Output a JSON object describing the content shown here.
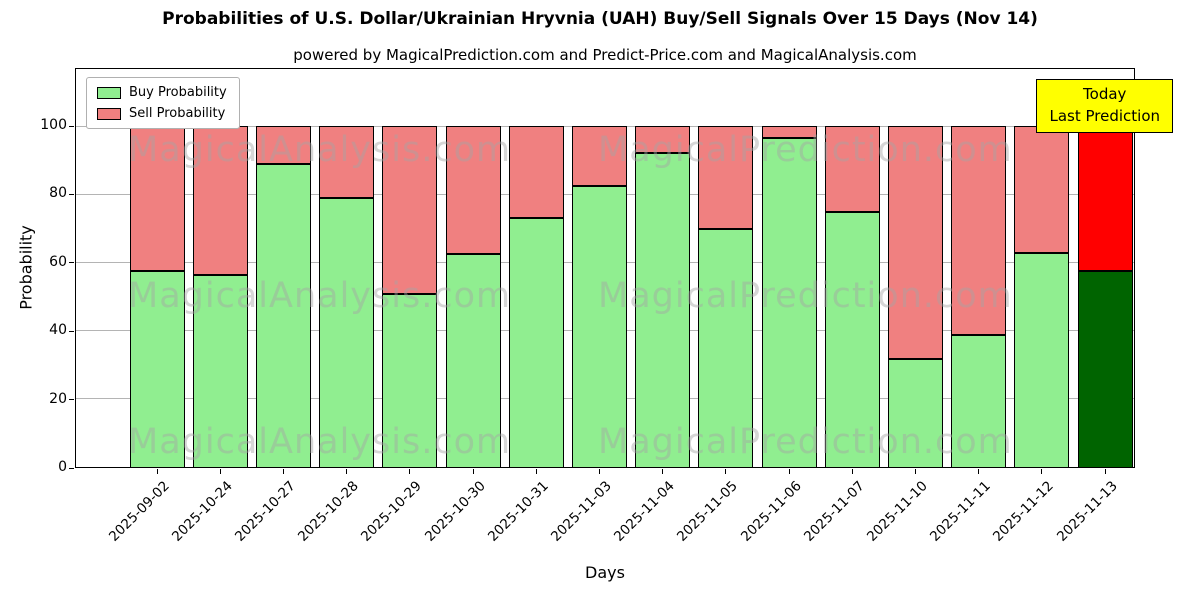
{
  "title": "Probabilities of U.S. Dollar/Ukrainian Hryvnia (UAH) Buy/Sell Signals Over 15 Days (Nov 14)",
  "subtitle": "powered by MagicalPrediction.com and Predict-Price.com and MagicalAnalysis.com",
  "legend": {
    "buy": "Buy Probability",
    "sell": "Sell Probability"
  },
  "annotation": {
    "line1": "Today",
    "line2": "Last Prediction"
  },
  "watermarks": [
    "MagicalAnalysis.com",
    "MagicalPrediction.com"
  ],
  "chart_data": {
    "type": "bar",
    "stacked": true,
    "title": "Probabilities of U.S. Dollar/Ukrainian Hryvnia (UAH) Buy/Sell Signals Over 15 Days (Nov 14)",
    "xlabel": "Days",
    "ylabel": "Probability",
    "yticks": [
      0,
      20,
      40,
      60,
      80,
      100
    ],
    "ylim": [
      0,
      117
    ],
    "grid": true,
    "legend_position": "upper-left",
    "categories": [
      "2025-09-02",
      "2025-10-24",
      "2025-10-27",
      "2025-10-28",
      "2025-10-29",
      "2025-10-30",
      "2025-10-31",
      "2025-11-03",
      "2025-11-04",
      "2025-11-05",
      "2025-11-06",
      "2025-11-07",
      "2025-11-10",
      "2025-11-11",
      "2025-11-12",
      "2025-11-13"
    ],
    "series": [
      {
        "name": "Buy Probability",
        "color": "#90EE90",
        "values": [
          57.5,
          56.5,
          89,
          79,
          51,
          62.5,
          73,
          82.5,
          92,
          70,
          96.5,
          75,
          32,
          39,
          63,
          57.5
        ]
      },
      {
        "name": "Sell Probability",
        "color": "#F08080",
        "values": [
          42.5,
          43.5,
          11,
          21,
          49,
          37.5,
          27,
          17.5,
          8,
          30,
          3.5,
          25,
          68,
          61,
          37,
          42.5
        ]
      }
    ],
    "last_bar_colors": {
      "buy": "#006400",
      "sell": "#FF0000"
    },
    "bar_edge_color": "#000000"
  }
}
